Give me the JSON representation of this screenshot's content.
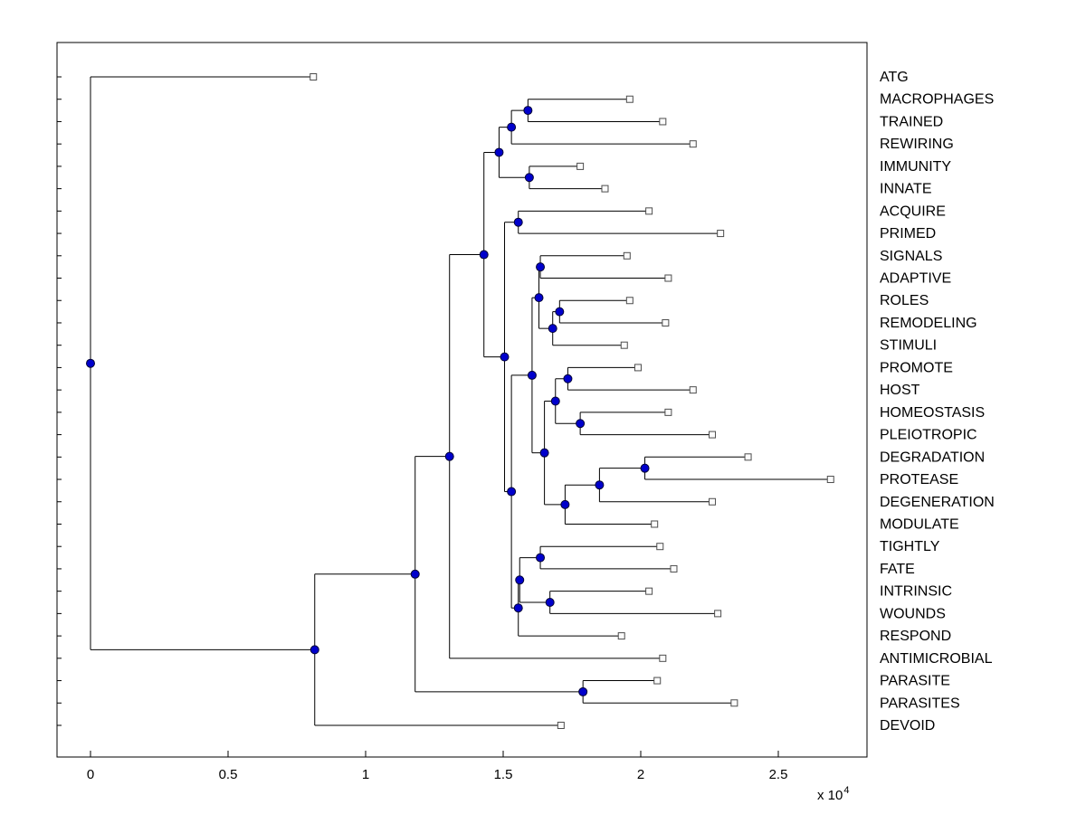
{
  "colors": {
    "background": "#ffffff",
    "axis": "#000000",
    "edge": "#000000",
    "text": "#000000",
    "node_fill": "#0000cc",
    "node_stroke": "#000033",
    "leaf_fill": "#fbfbfb",
    "leaf_stroke": "#4d4d4d"
  },
  "chart_data": {
    "type": "dendrogram",
    "orientation": "root-left-leaves-right",
    "x_axis": {
      "ticks": [
        {
          "value": 0,
          "label": "0"
        },
        {
          "value": 5000,
          "label": "0.5"
        },
        {
          "value": 10000,
          "label": "1"
        },
        {
          "value": 15000,
          "label": "1.5"
        },
        {
          "value": 20000,
          "label": "2"
        },
        {
          "value": 25000,
          "label": "2.5"
        }
      ],
      "exponent_prefix": "x 10",
      "exponent_power": "4",
      "xlim": [
        -1200,
        28200
      ]
    },
    "leaves": [
      "ATG",
      "MACROPHAGES",
      "TRAINED",
      "REWIRING",
      "IMMUNITY",
      "INNATE",
      "ACQUIRE",
      "PRIMED",
      "SIGNALS",
      "ADAPTIVE",
      "ROLES",
      "REMODELING",
      "STIMULI",
      "PROMOTE",
      "HOST",
      "HOMEOSTASIS",
      "PLEIOTROPIC",
      "DEGRADATION",
      "PROTEASE",
      "DEGENERATION",
      "MODULATE",
      "TIGHTLY",
      "FATE",
      "INTRINSIC",
      "WOUNDS",
      "RESPOND",
      "ANTIMICROBIAL",
      "PARASITE",
      "PARASITES",
      "DEVOID"
    ],
    "tree": {
      "x": 0,
      "children": [
        {
          "name": "ATG",
          "x": 8100
        },
        {
          "x": 8150,
          "children": [
            {
              "x": 11800,
              "children": [
                {
                  "x": 13050,
                  "children": [
                    {
                      "x": 14300,
                      "children": [
                        {
                          "x": 14850,
                          "children": [
                            {
                              "x": 15300,
                              "children": [
                                {
                                  "x": 15900,
                                  "children": [
                                    {
                                      "name": "MACROPHAGES",
                                      "x": 19600
                                    },
                                    {
                                      "name": "TRAINED",
                                      "x": 20800
                                    }
                                  ]
                                },
                                {
                                  "name": "REWIRING",
                                  "x": 21900
                                }
                              ]
                            },
                            {
                              "x": 15950,
                              "children": [
                                {
                                  "name": "IMMUNITY",
                                  "x": 17800
                                },
                                {
                                  "name": "INNATE",
                                  "x": 18700
                                }
                              ]
                            }
                          ]
                        },
                        {
                          "x": 15050,
                          "children": [
                            {
                              "x": 15550,
                              "children": [
                                {
                                  "name": "ACQUIRE",
                                  "x": 20300
                                },
                                {
                                  "name": "PRIMED",
                                  "x": 22900
                                }
                              ]
                            },
                            {
                              "x": 15300,
                              "children": [
                                {
                                  "x": 16050,
                                  "children": [
                                    {
                                      "x": 16300,
                                      "children": [
                                        {
                                          "x": 16350,
                                          "children": [
                                            {
                                              "name": "SIGNALS",
                                              "x": 19500
                                            },
                                            {
                                              "name": "ADAPTIVE",
                                              "x": 21000
                                            }
                                          ]
                                        },
                                        {
                                          "x": 16800,
                                          "children": [
                                            {
                                              "x": 17050,
                                              "children": [
                                                {
                                                  "name": "ROLES",
                                                  "x": 19600
                                                },
                                                {
                                                  "name": "REMODELING",
                                                  "x": 20900
                                                }
                                              ]
                                            },
                                            {
                                              "name": "STIMULI",
                                              "x": 19400
                                            }
                                          ]
                                        }
                                      ]
                                    },
                                    {
                                      "x": 16500,
                                      "children": [
                                        {
                                          "x": 16900,
                                          "children": [
                                            {
                                              "x": 17350,
                                              "children": [
                                                {
                                                  "name": "PROMOTE",
                                                  "x": 19900
                                                },
                                                {
                                                  "name": "HOST",
                                                  "x": 21900
                                                }
                                              ]
                                            },
                                            {
                                              "x": 17800,
                                              "children": [
                                                {
                                                  "name": "HOMEOSTASIS",
                                                  "x": 21000
                                                },
                                                {
                                                  "name": "PLEIOTROPIC",
                                                  "x": 22600
                                                }
                                              ]
                                            }
                                          ]
                                        },
                                        {
                                          "x": 17250,
                                          "children": [
                                            {
                                              "x": 18500,
                                              "children": [
                                                {
                                                  "x": 20150,
                                                  "children": [
                                                    {
                                                      "name": "DEGRADATION",
                                                      "x": 23900
                                                    },
                                                    {
                                                      "name": "PROTEASE",
                                                      "x": 26900
                                                    }
                                                  ]
                                                },
                                                {
                                                  "name": "DEGENERATION",
                                                  "x": 22600
                                                }
                                              ]
                                            },
                                            {
                                              "name": "MODULATE",
                                              "x": 20500
                                            }
                                          ]
                                        }
                                      ]
                                    }
                                  ]
                                },
                                {
                                  "x": 15550,
                                  "children": [
                                    {
                                      "x": 15600,
                                      "children": [
                                        {
                                          "x": 16350,
                                          "children": [
                                            {
                                              "name": "TIGHTLY",
                                              "x": 20700
                                            },
                                            {
                                              "name": "FATE",
                                              "x": 21200
                                            }
                                          ]
                                        },
                                        {
                                          "x": 16700,
                                          "children": [
                                            {
                                              "name": "INTRINSIC",
                                              "x": 20300
                                            },
                                            {
                                              "name": "WOUNDS",
                                              "x": 22800
                                            }
                                          ]
                                        }
                                      ]
                                    },
                                    {
                                      "name": "RESPOND",
                                      "x": 19300
                                    }
                                  ]
                                }
                              ]
                            }
                          ]
                        }
                      ]
                    },
                    {
                      "name": "ANTIMICROBIAL",
                      "x": 20800
                    }
                  ]
                },
                {
                  "x": 17900,
                  "children": [
                    {
                      "name": "PARASITE",
                      "x": 20600
                    },
                    {
                      "name": "PARASITES",
                      "x": 23400
                    }
                  ]
                }
              ]
            },
            {
              "name": "DEVOID",
              "x": 17100
            }
          ]
        }
      ]
    }
  }
}
